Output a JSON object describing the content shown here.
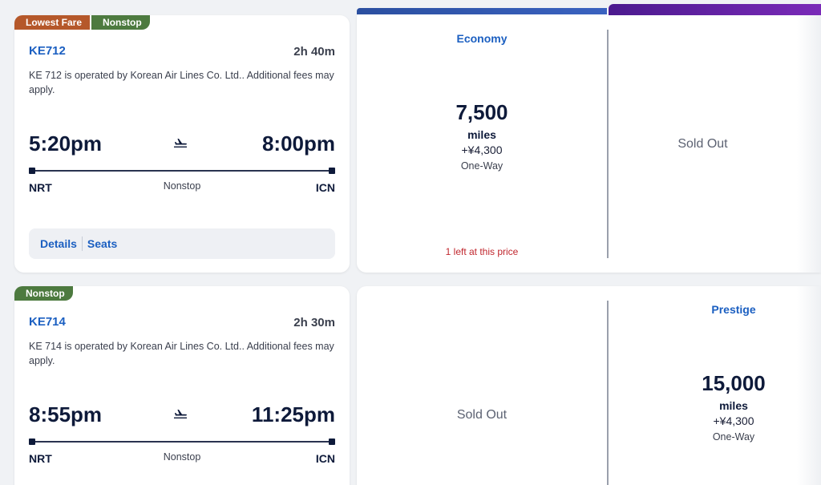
{
  "colors": {
    "link_blue": "#1b5fc1",
    "lowest_fare_badge": "#b5582a",
    "nonstop_badge": "#4d7a3f",
    "economy_bar": "#2b4fa0",
    "prestige_bar": "#5e1fa3",
    "warning_red": "#c0262d"
  },
  "flights": [
    {
      "badges": [
        "Lowest Fare",
        "Nonstop"
      ],
      "flight_number": "KE712",
      "duration": "2h 40m",
      "operated_by": "KE 712 is operated by Korean Air Lines Co. Ltd.. Additional fees may apply.",
      "depart_time": "5:20pm",
      "arrive_time": "8:00pm",
      "from": "NRT",
      "to": "ICN",
      "stops": "Nonstop",
      "plane_icon": "airplane-icon",
      "details_label": "Details",
      "seats_label": "Seats",
      "economy": {
        "cabin": "Economy",
        "miles": "7,500",
        "miles_unit": "miles",
        "fee": "+¥4,300",
        "trip_type": "One-Way",
        "availability": "1 left at this price"
      },
      "prestige": {
        "status": "Sold Out"
      }
    },
    {
      "badges": [
        "Nonstop"
      ],
      "flight_number": "KE714",
      "duration": "2h 30m",
      "operated_by": "KE 714 is operated by Korean Air Lines Co. Ltd.. Additional fees may apply.",
      "depart_time": "8:55pm",
      "arrive_time": "11:25pm",
      "from": "NRT",
      "to": "ICN",
      "stops": "Nonstop",
      "plane_icon": "airplane-icon",
      "economy": {
        "status": "Sold Out"
      },
      "prestige": {
        "cabin": "Prestige",
        "miles": "15,000",
        "miles_unit": "miles",
        "fee": "+¥4,300",
        "trip_type": "One-Way"
      }
    }
  ]
}
